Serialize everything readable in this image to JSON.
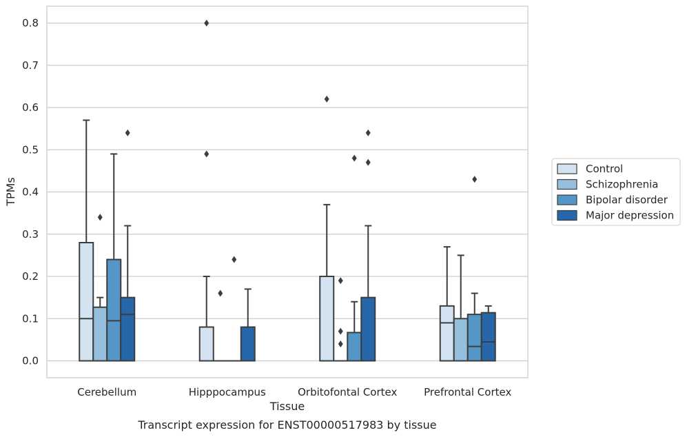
{
  "chart_data": {
    "type": "box",
    "title": "",
    "caption": "Transcript expression for ENST00000517983 by tissue",
    "xlabel": "Tissue",
    "ylabel": "TPMs",
    "ylim": [
      -0.04,
      0.84
    ],
    "yticks": [
      0.0,
      0.1,
      0.2,
      0.3,
      0.4,
      0.5,
      0.6,
      0.7,
      0.8
    ],
    "ytick_labels": [
      "0.0",
      "0.1",
      "0.2",
      "0.3",
      "0.4",
      "0.5",
      "0.6",
      "0.7",
      "0.8"
    ],
    "grid": "horizontal",
    "legend_position": "right",
    "categories": [
      "Cerebellum",
      "Hipppocampus",
      "Orbitofontal Cortex",
      "Prefrontal Cortex"
    ],
    "series": [
      {
        "name": "Control",
        "color": "#d3e3f1",
        "boxes": [
          {
            "whislo": 0.0,
            "q1": 0.0,
            "med": 0.1,
            "q3": 0.28,
            "whishi": 0.57,
            "fliers": []
          },
          {
            "whislo": 0.0,
            "q1": 0.0,
            "med": 0.0,
            "q3": 0.08,
            "whishi": 0.2,
            "fliers": [
              0.49,
              0.8
            ]
          },
          {
            "whislo": 0.0,
            "q1": 0.0,
            "med": 0.0,
            "q3": 0.2,
            "whishi": 0.37,
            "fliers": [
              0.62
            ]
          },
          {
            "whislo": 0.0,
            "q1": 0.0,
            "med": 0.09,
            "q3": 0.13,
            "whishi": 0.27,
            "fliers": []
          }
        ]
      },
      {
        "name": "Schizophrenia",
        "color": "#95bfdc",
        "boxes": [
          {
            "whislo": 0.0,
            "q1": 0.0,
            "med": 0.0,
            "q3": 0.127,
            "whishi": 0.15,
            "fliers": [
              0.34
            ]
          },
          {
            "whislo": 0.0,
            "q1": 0.0,
            "med": 0.0,
            "q3": 0.0,
            "whishi": 0.0,
            "fliers": [
              0.16
            ]
          },
          {
            "whislo": 0.0,
            "q1": 0.0,
            "med": 0.0,
            "q3": 0.0,
            "whishi": 0.0,
            "fliers": [
              0.04,
              0.07,
              0.19
            ]
          },
          {
            "whislo": 0.0,
            "q1": 0.0,
            "med": 0.0,
            "q3": 0.1,
            "whishi": 0.25,
            "fliers": []
          }
        ]
      },
      {
        "name": "Bipolar disorder",
        "color": "#5496c5",
        "boxes": [
          {
            "whislo": 0.0,
            "q1": 0.0,
            "med": 0.095,
            "q3": 0.24,
            "whishi": 0.49,
            "fliers": []
          },
          {
            "whislo": 0.0,
            "q1": 0.0,
            "med": 0.0,
            "q3": 0.0,
            "whishi": 0.0,
            "fliers": [
              0.24
            ]
          },
          {
            "whislo": 0.0,
            "q1": 0.0,
            "med": 0.0,
            "q3": 0.067,
            "whishi": 0.14,
            "fliers": [
              0.48
            ]
          },
          {
            "whislo": 0.0,
            "q1": 0.0,
            "med": 0.034,
            "q3": 0.11,
            "whishi": 0.16,
            "fliers": [
              0.43
            ]
          }
        ]
      },
      {
        "name": "Major depression",
        "color": "#2567a8",
        "boxes": [
          {
            "whislo": 0.0,
            "q1": 0.0,
            "med": 0.11,
            "q3": 0.15,
            "whishi": 0.32,
            "fliers": [
              0.54
            ]
          },
          {
            "whislo": 0.0,
            "q1": 0.0,
            "med": 0.0,
            "q3": 0.08,
            "whishi": 0.17,
            "fliers": []
          },
          {
            "whislo": 0.0,
            "q1": 0.0,
            "med": 0.0,
            "q3": 0.15,
            "whishi": 0.32,
            "fliers": [
              0.47,
              0.54
            ]
          },
          {
            "whislo": 0.0,
            "q1": 0.0,
            "med": 0.045,
            "q3": 0.114,
            "whishi": 0.13,
            "fliers": []
          }
        ]
      }
    ]
  }
}
